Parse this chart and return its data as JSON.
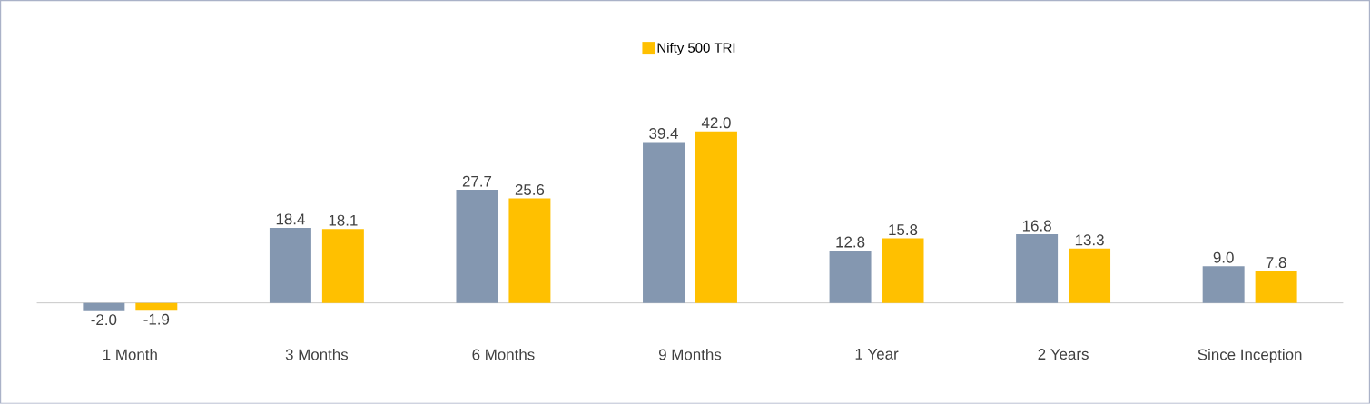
{
  "chart_data": {
    "type": "bar",
    "categories": [
      "1 Month",
      "3 Months",
      "6 Months",
      "9 Months",
      "1 Year",
      "2 Years",
      "Since Inception"
    ],
    "series": [
      {
        "color": "#8497b0",
        "values": [
          -2.0,
          18.4,
          27.7,
          39.4,
          12.8,
          16.8,
          9.0
        ],
        "value_labels": [
          "-2.0",
          "18.4",
          "27.7",
          "39.4",
          "12.8",
          "16.8",
          "9.0"
        ]
      },
      {
        "name": "Nifty 500 TRI",
        "color": "#ffc000",
        "values": [
          -1.9,
          18.1,
          25.6,
          42.0,
          15.8,
          13.3,
          7.8
        ],
        "value_labels": [
          "-1.9",
          "18.1",
          "25.6",
          "42.0",
          "15.8",
          "13.3",
          "7.8"
        ]
      }
    ],
    "legend": "top",
    "grid": false
  }
}
